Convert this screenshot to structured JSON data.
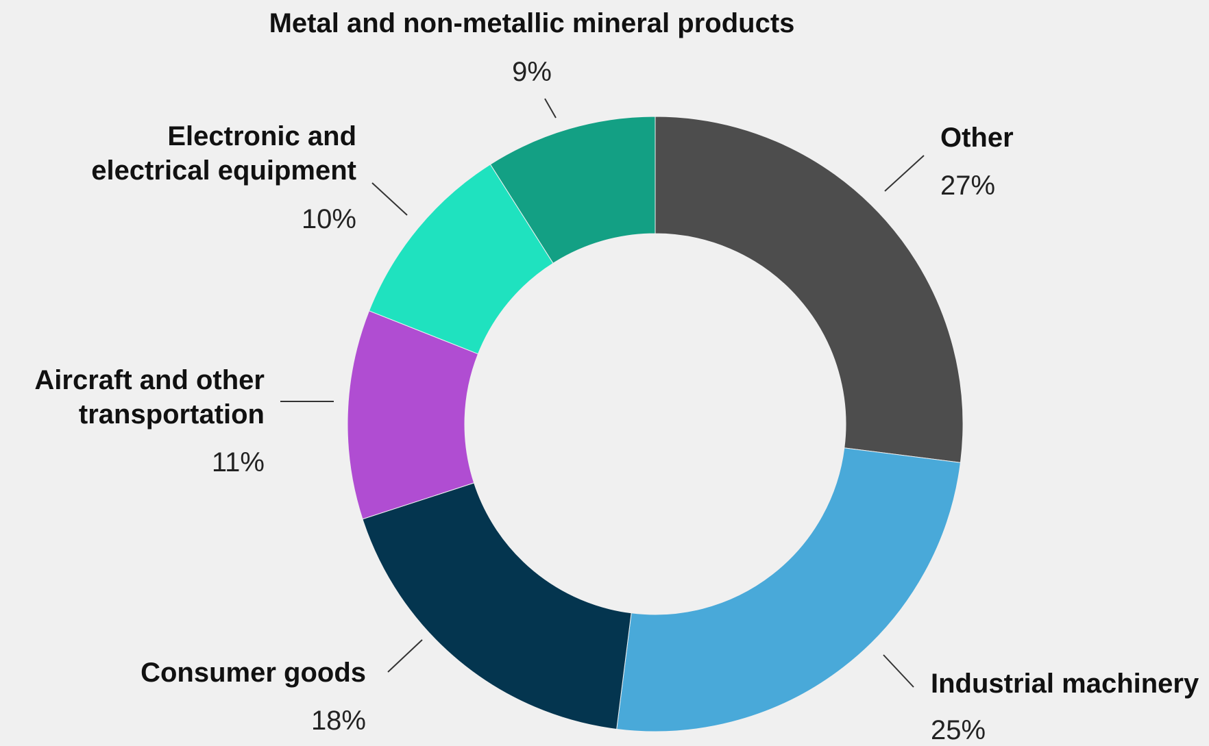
{
  "chart_data": {
    "type": "pie",
    "style": "donut",
    "slices": [
      {
        "label": "Other",
        "value": 27,
        "value_label": "27%",
        "color": "#4d4d4d"
      },
      {
        "label": "Industrial machinery",
        "value": 25,
        "value_label": "25%",
        "color": "#49a9d9"
      },
      {
        "label": "Consumer goods",
        "value": 18,
        "value_label": "18%",
        "color": "#04354f"
      },
      {
        "label": "Aircraft and other transportation",
        "value": 11,
        "value_label": "11%",
        "color": "#b04dd2"
      },
      {
        "label": "Electronic and electrical equipment",
        "value": 10,
        "value_label": "10%",
        "color": "#1fe2bf"
      },
      {
        "label": "Metal and non-metallic mineral products",
        "value": 9,
        "value_label": "9%",
        "color": "#13a084"
      }
    ],
    "start": "top",
    "direction": "clockwise",
    "legend": "none"
  }
}
